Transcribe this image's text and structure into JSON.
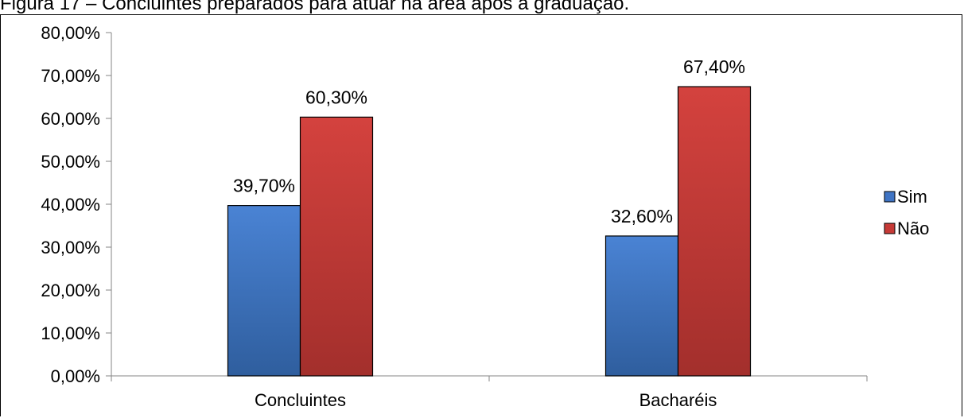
{
  "chart_data": {
    "type": "bar",
    "title": "Figura 17 – Concluintes preparados para atuar na área após a graduação.",
    "categories": [
      "Concluintes",
      "Bacharéis"
    ],
    "series": [
      {
        "name": "Sim",
        "values": [
          39.7,
          32.6
        ],
        "labels": [
          "39,70%",
          "32,60%"
        ],
        "color": "#3f74c4"
      },
      {
        "name": "Não",
        "values": [
          60.3,
          67.4
        ],
        "labels": [
          "60,30%",
          "67,40%"
        ],
        "color": "#c63a36"
      }
    ],
    "ylim": [
      0,
      80
    ],
    "yticks": [
      "0,00%",
      "10,00%",
      "20,00%",
      "30,00%",
      "40,00%",
      "50,00%",
      "60,00%",
      "70,00%",
      "80,00%"
    ],
    "xlabel": "",
    "ylabel": "",
    "grid": false,
    "legend": "right"
  }
}
